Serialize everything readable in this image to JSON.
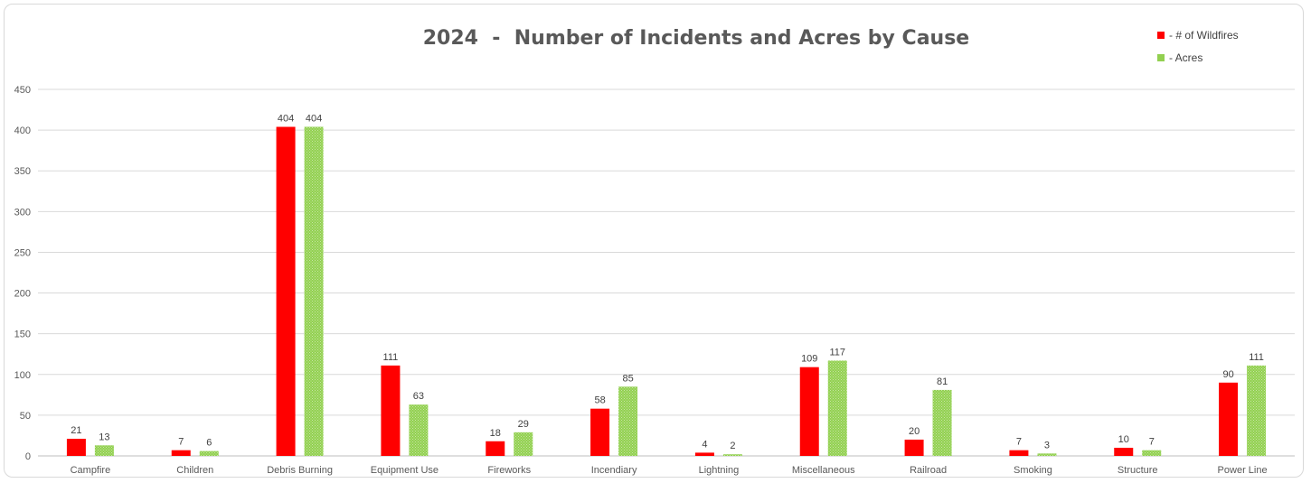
{
  "chart_data": {
    "type": "bar",
    "title": "2024  -  Number of Incidents and Acres by Cause",
    "xlabel": "",
    "ylabel": "",
    "ylim": [
      0,
      450
    ],
    "yticks": [
      0,
      50,
      100,
      150,
      200,
      250,
      300,
      350,
      400,
      450
    ],
    "grid": true,
    "legend_position": "top-right",
    "categories": [
      "Campfire",
      "Children",
      "Debris Burning",
      "Equipment Use",
      "Fireworks",
      "Incendiary",
      "Lightning",
      "Miscellaneous",
      "Railroad",
      "Smoking",
      "Structure",
      "Power Line"
    ],
    "series": [
      {
        "name": "- # of Wildfires",
        "color": "#ff0000",
        "values": [
          21,
          7,
          404,
          111,
          18,
          58,
          4,
          109,
          20,
          7,
          10,
          90
        ]
      },
      {
        "name": "- Acres",
        "color": "#92d050",
        "pattern": "dotted",
        "values": [
          13,
          6,
          404,
          63,
          29,
          85,
          2,
          117,
          81,
          3,
          7,
          111
        ]
      }
    ]
  }
}
